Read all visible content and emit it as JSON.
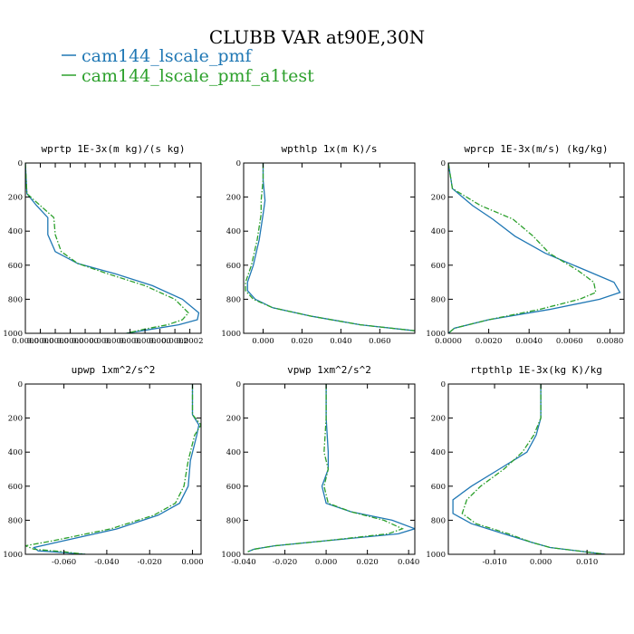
{
  "page_title": "CLUBB VAR at90E,30N",
  "legend": [
    {
      "label": "cam144_lscale_pmf",
      "color": "#1f77b4",
      "dash": "solid"
    },
    {
      "label": "cam144_lscale_pmf_a1test",
      "color": "#2ca02c",
      "dash": "dashdot"
    }
  ],
  "chart_data": [
    {
      "type": "line",
      "title": "wprtp  1E-3x(m kg)/(s kg)",
      "xlim": [
        0,
        0.000235
      ],
      "ylim": [
        1000,
        0
      ],
      "y_inverted": true,
      "xticks": [
        0,
        2e-05,
        4e-05,
        6e-05,
        8e-05,
        0.0001,
        0.00012,
        0.00014,
        0.00016,
        0.00018,
        0.0002,
        0.00022
      ],
      "xtick_labels": [
        "0.0000",
        "0.0000",
        "0.0000",
        "0.0000",
        "0.0000",
        "0.000",
        "0.000",
        "0.000",
        "0.000",
        "0.000",
        "0.0002",
        "0.0002"
      ],
      "yticks": [
        0,
        200,
        400,
        600,
        800,
        1000
      ],
      "ytick_labels": [
        "0",
        "200",
        "400",
        "600",
        "800",
        "1000"
      ],
      "series": [
        {
          "name": "cam144_lscale_pmf",
          "x": [
            0,
            2e-06,
            1.5e-05,
            3e-05,
            3e-05,
            4e-05,
            7e-05,
            0.00012,
            0.00017,
            0.00021,
            0.000232,
            0.00023,
            0.000205,
            0.00017,
            0.000135
          ],
          "y": [
            0,
            180,
            250,
            320,
            420,
            520,
            590,
            650,
            720,
            800,
            880,
            920,
            950,
            975,
            1000
          ]
        },
        {
          "name": "cam144_lscale_pmf_a1test",
          "x": [
            0,
            2e-06,
            2e-05,
            3.8e-05,
            4e-05,
            4.8e-05,
            7e-05,
            0.00011,
            0.00016,
            0.0002,
            0.000218,
            0.00021,
            0.00019,
            0.00016,
            0.000135
          ],
          "y": [
            0,
            180,
            250,
            320,
            420,
            520,
            590,
            650,
            720,
            800,
            880,
            920,
            950,
            975,
            1000
          ]
        }
      ]
    },
    {
      "type": "line",
      "title": "wpthlp  1x(m K)/s",
      "xlim": [
        -0.01,
        0.078
      ],
      "ylim": [
        1000,
        0
      ],
      "y_inverted": true,
      "xticks": [
        0,
        0.02,
        0.04,
        0.06
      ],
      "xtick_labels": [
        "0.000",
        "0.020",
        "0.040",
        "0.060"
      ],
      "yticks": [
        0,
        200,
        400,
        600,
        800,
        1000
      ],
      "ytick_labels": [
        "0",
        "200",
        "400",
        "600",
        "800",
        "1000"
      ],
      "series": [
        {
          "name": "cam144_lscale_pmf",
          "x": [
            0,
            0,
            0.001,
            0,
            -0.002,
            -0.005,
            -0.008,
            -0.008,
            -0.004,
            0.005,
            0.025,
            0.05,
            0.078
          ],
          "y": [
            0,
            100,
            220,
            300,
            450,
            600,
            700,
            750,
            800,
            850,
            900,
            950,
            985
          ]
        },
        {
          "name": "cam144_lscale_pmf_a1test",
          "x": [
            0,
            0,
            -0.001,
            -0.001,
            -0.003,
            -0.006,
            -0.009,
            -0.009,
            -0.005,
            0.005,
            0.025,
            0.05,
            0.078
          ],
          "y": [
            0,
            100,
            220,
            300,
            450,
            600,
            700,
            750,
            800,
            850,
            900,
            950,
            985
          ]
        }
      ]
    },
    {
      "type": "line",
      "title": "wprcp  1E-3x(m/s) (kg/kg)",
      "xlim": [
        0,
        0.0087
      ],
      "ylim": [
        1000,
        0
      ],
      "y_inverted": true,
      "xticks": [
        0,
        0.002,
        0.004,
        0.006,
        0.008
      ],
      "xtick_labels": [
        "0.0000",
        "0.0020",
        "0.0040",
        "0.0060",
        "0.0080"
      ],
      "yticks": [
        0,
        200,
        400,
        600,
        800,
        1000
      ],
      "ytick_labels": [
        "0",
        "200",
        "400",
        "600",
        "800",
        "1000"
      ],
      "series": [
        {
          "name": "cam144_lscale_pmf",
          "x": [
            0,
            0.0002,
            0.0012,
            0.0022,
            0.0033,
            0.0048,
            0.0068,
            0.0082,
            0.0085,
            0.0075,
            0.005,
            0.002,
            0.0003,
            0
          ],
          "y": [
            0,
            150,
            250,
            330,
            430,
            530,
            630,
            700,
            760,
            800,
            860,
            920,
            970,
            1000
          ]
        },
        {
          "name": "cam144_lscale_pmf_a1test",
          "x": [
            0,
            0.0002,
            0.0016,
            0.0032,
            0.0042,
            0.005,
            0.0064,
            0.0072,
            0.0073,
            0.0065,
            0.0045,
            0.002,
            0.0003,
            0
          ],
          "y": [
            0,
            150,
            250,
            330,
            430,
            530,
            630,
            700,
            760,
            800,
            860,
            920,
            970,
            1000
          ]
        }
      ]
    },
    {
      "type": "line",
      "title": "upwp  1xm^2/s^2",
      "xlim": [
        -0.078,
        0.004
      ],
      "ylim": [
        1000,
        0
      ],
      "y_inverted": true,
      "xticks": [
        -0.06,
        -0.04,
        -0.02,
        0
      ],
      "xtick_labels": [
        "-0.060",
        "-0.040",
        "-0.020",
        "0.000"
      ],
      "yticks": [
        0,
        200,
        400,
        600,
        800,
        1000
      ],
      "ytick_labels": [
        "0",
        "200",
        "400",
        "600",
        "800",
        "1000"
      ],
      "series": [
        {
          "name": "cam144_lscale_pmf",
          "x": [
            0,
            0,
            0.003,
            0.002,
            -0.001,
            -0.002,
            -0.006,
            -0.016,
            -0.035,
            -0.06,
            -0.074,
            -0.072,
            -0.06,
            -0.05
          ],
          "y": [
            0,
            180,
            240,
            300,
            450,
            600,
            700,
            770,
            850,
            920,
            960,
            980,
            990,
            1000
          ]
        },
        {
          "name": "cam144_lscale_pmf_a1test",
          "x": [
            0,
            0,
            0.004,
            0.001,
            -0.002,
            -0.004,
            -0.008,
            -0.018,
            -0.038,
            -0.065,
            -0.078,
            -0.074,
            -0.06,
            -0.05
          ],
          "y": [
            0,
            180,
            240,
            300,
            450,
            600,
            700,
            770,
            850,
            920,
            950,
            970,
            985,
            1000
          ]
        }
      ]
    },
    {
      "type": "line",
      "title": "vpwp  1xm^2/s^2",
      "xlim": [
        -0.04,
        0.043
      ],
      "ylim": [
        1000,
        0
      ],
      "y_inverted": true,
      "xticks": [
        -0.04,
        -0.02,
        0,
        0.02,
        0.04
      ],
      "xtick_labels": [
        "-0.040",
        "-0.020",
        "0.000",
        "0.020",
        "0.040"
      ],
      "yticks": [
        0,
        200,
        400,
        600,
        800,
        1000
      ],
      "ytick_labels": [
        "0",
        "200",
        "400",
        "600",
        "800",
        "1000"
      ],
      "series": [
        {
          "name": "cam144_lscale_pmf",
          "x": [
            0,
            0,
            0.001,
            0.001,
            -0.002,
            0,
            0.012,
            0.032,
            0.043,
            0.035,
            0,
            -0.025,
            -0.035,
            -0.038
          ],
          "y": [
            0,
            200,
            400,
            500,
            600,
            700,
            750,
            800,
            850,
            880,
            920,
            950,
            970,
            985
          ]
        },
        {
          "name": "cam144_lscale_pmf_a1test",
          "x": [
            0,
            0,
            -0.001,
            0.001,
            -0.001,
            0.001,
            0.012,
            0.028,
            0.037,
            0.03,
            0,
            -0.025,
            -0.035,
            -0.038
          ],
          "y": [
            0,
            200,
            400,
            500,
            600,
            700,
            750,
            800,
            850,
            880,
            920,
            950,
            970,
            985
          ]
        }
      ]
    },
    {
      "type": "line",
      "title": "rtpthlp  1E-3x(kg K)/kg",
      "xlim": [
        -0.02,
        0.018
      ],
      "ylim": [
        1000,
        0
      ],
      "y_inverted": true,
      "xticks": [
        -0.01,
        0,
        0.01
      ],
      "xtick_labels": [
        "-0.010",
        "0.000",
        "0.010"
      ],
      "yticks": [
        0,
        200,
        400,
        600,
        800,
        1000
      ],
      "ytick_labels": [
        "0",
        "200",
        "400",
        "600",
        "800",
        "1000"
      ],
      "series": [
        {
          "name": "cam144_lscale_pmf",
          "x": [
            0,
            0,
            -0.001,
            -0.003,
            -0.009,
            -0.015,
            -0.019,
            -0.019,
            -0.015,
            -0.008,
            -0.002,
            0.002,
            0.014
          ],
          "y": [
            0,
            200,
            300,
            400,
            500,
            600,
            680,
            760,
            820,
            880,
            930,
            960,
            1000
          ]
        },
        {
          "name": "cam144_lscale_pmf_a1test",
          "x": [
            0,
            0,
            -0.0015,
            -0.004,
            -0.008,
            -0.013,
            -0.016,
            -0.017,
            -0.014,
            -0.007,
            -0.002,
            0.002,
            0.014
          ],
          "y": [
            0,
            200,
            300,
            400,
            500,
            600,
            680,
            760,
            820,
            880,
            930,
            960,
            1000
          ]
        }
      ]
    }
  ]
}
